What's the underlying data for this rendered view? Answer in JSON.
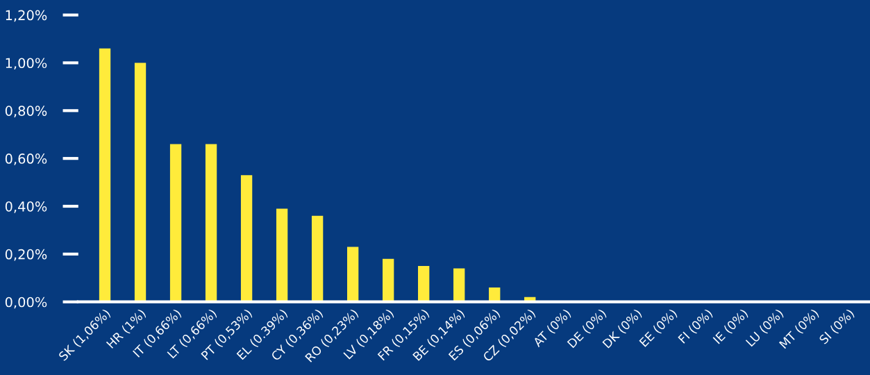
{
  "chart_data": {
    "type": "bar",
    "categories": [
      "SK (1,06%)",
      "HR (1%)",
      "IT (0,66%)",
      "LT (0,66%)",
      "PT (0,53%)",
      "EL (0.39%)",
      "CY (0,36%)",
      "RO (0,23%)",
      "LV (0,18%)",
      "FR (0,15%)",
      "BE (0,14%)",
      "ES (0,06%)",
      "CZ (0,02%)",
      "AT (0%)",
      "DE (0%)",
      "DK (0%)",
      "EE (0%)",
      "FI (0%)",
      "IE (0%)",
      "LU (0%)",
      "MT (0%)",
      "SI (0%)"
    ],
    "values": [
      1.06,
      1.0,
      0.66,
      0.66,
      0.53,
      0.39,
      0.36,
      0.23,
      0.18,
      0.15,
      0.14,
      0.06,
      0.02,
      0,
      0,
      0,
      0,
      0,
      0,
      0,
      0,
      0
    ],
    "color": "#ffeb3b",
    "ylim": [
      0,
      1.2
    ],
    "yticks": [
      {
        "value": 0,
        "label": "0,00%"
      },
      {
        "value": 0.2,
        "label": "0,20%"
      },
      {
        "value": 0.4,
        "label": "0,40%"
      },
      {
        "value": 0.6,
        "label": "0,60%"
      },
      {
        "value": 0.8,
        "label": "0,80%"
      },
      {
        "value": 1.0,
        "label": "1,00%"
      },
      {
        "value": 1.2,
        "label": "1,20%"
      }
    ],
    "grid": false,
    "legend": false
  }
}
